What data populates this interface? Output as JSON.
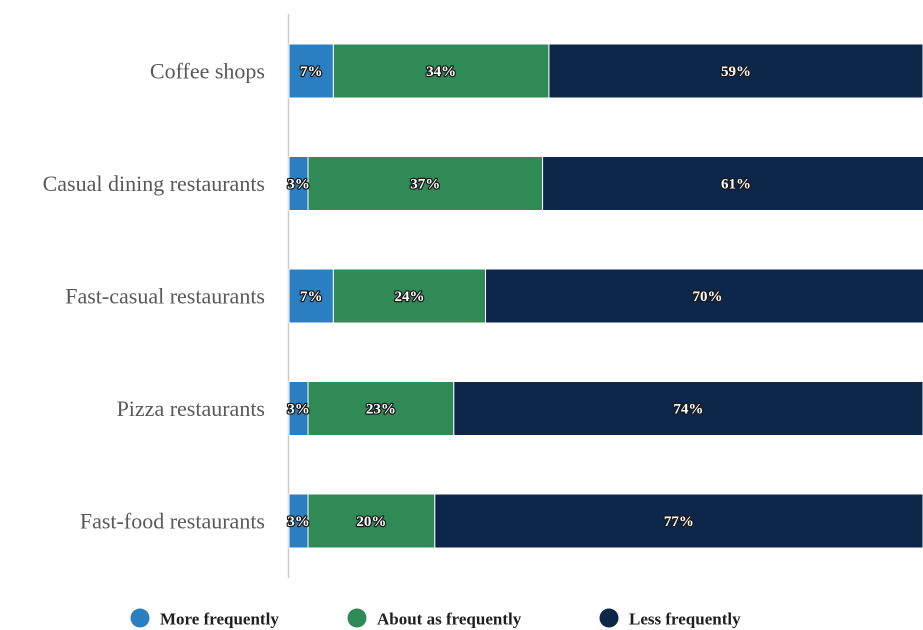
{
  "chart_data": {
    "type": "bar",
    "orientation": "horizontal",
    "stacked": true,
    "categories": [
      "Coffee shops",
      "Casual dining restaurants",
      "Fast-casual restaurants",
      "Pizza restaurants",
      "Fast-food restaurants"
    ],
    "series": [
      {
        "name": "More frequently",
        "color": "#2a7fc3",
        "values": [
          7,
          3,
          7,
          3,
          3
        ],
        "labels": [
          "7%",
          "3%",
          "7%",
          "3%",
          "3%"
        ]
      },
      {
        "name": "About as frequently",
        "color": "#2f8a55",
        "values": [
          34,
          37,
          24,
          23,
          20
        ],
        "labels": [
          "34%",
          "37%",
          "24%",
          "23%",
          "20%"
        ]
      },
      {
        "name": "Less frequently",
        "color": "#0c2749",
        "values": [
          59,
          61,
          70,
          74,
          77
        ],
        "labels": [
          "59%",
          "61%",
          "70%",
          "74%",
          "77%"
        ]
      }
    ],
    "xlim": [
      0,
      100
    ],
    "grid": false,
    "legend_position": "bottom",
    "axis_line_color": "#c6cbd4"
  }
}
